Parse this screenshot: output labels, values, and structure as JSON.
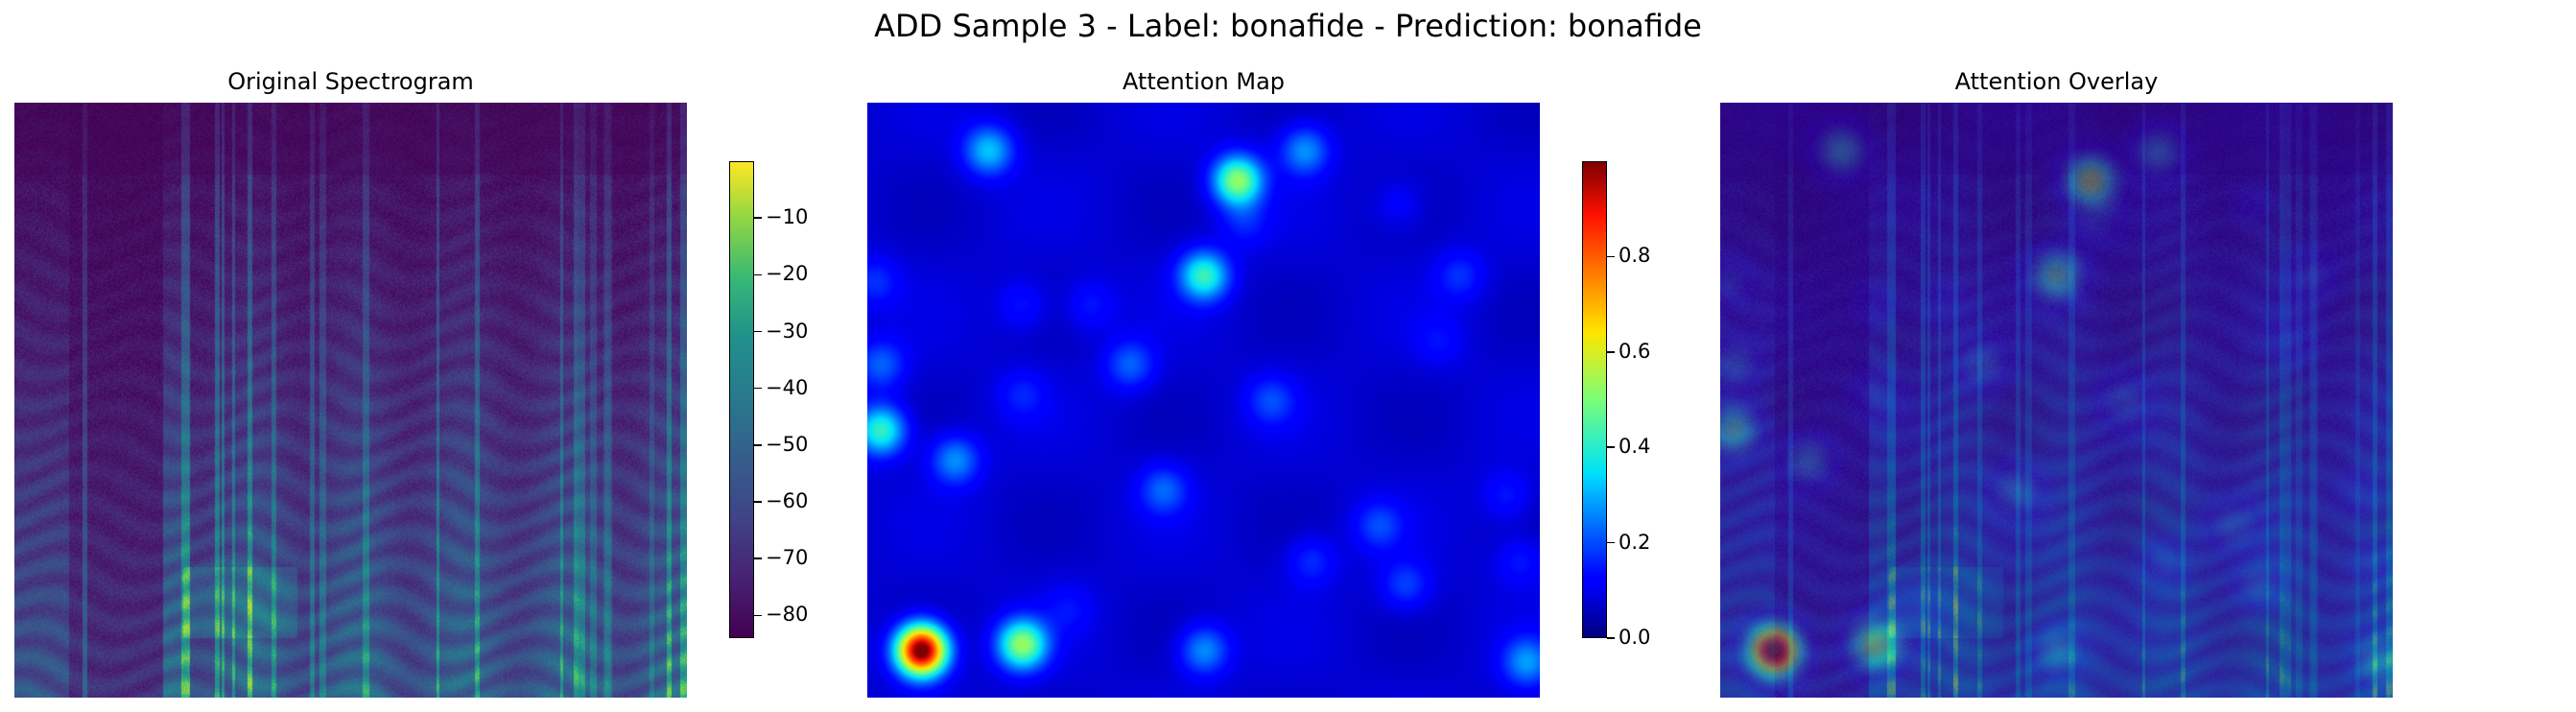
{
  "chart_data": {
    "suptitle": "ADD Sample 3 - Label: bonafide - Prediction: bonafide",
    "panels": [
      {
        "type": "heatmap",
        "title": "Original Spectrogram",
        "colormap": "viridis",
        "axes": "off",
        "colorbar": {
          "ticks": [
            -10,
            -20,
            -30,
            -40,
            -50,
            -60,
            -70,
            -80
          ],
          "range": [
            -84,
            0
          ]
        }
      },
      {
        "type": "heatmap",
        "title": "Attention Map",
        "colormap": "jet",
        "axes": "off",
        "colorbar": {
          "ticks": [
            0.0,
            0.2,
            0.4,
            0.6,
            0.8
          ],
          "range": [
            0.0,
            1.0
          ]
        },
        "peaks": [
          {
            "x": 0.08,
            "y": 0.92,
            "v": 1.0
          },
          {
            "x": 0.23,
            "y": 0.91,
            "v": 0.45
          },
          {
            "x": 0.55,
            "y": 0.13,
            "v": 0.45
          },
          {
            "x": 0.5,
            "y": 0.29,
            "v": 0.35
          },
          {
            "x": 0.02,
            "y": 0.55,
            "v": 0.35
          },
          {
            "x": 0.18,
            "y": 0.08,
            "v": 0.25
          },
          {
            "x": 0.13,
            "y": 0.6,
            "v": 0.2
          },
          {
            "x": 0.65,
            "y": 0.08,
            "v": 0.2
          },
          {
            "x": 0.5,
            "y": 0.92,
            "v": 0.2
          },
          {
            "x": 0.98,
            "y": 0.94,
            "v": 0.2
          },
          {
            "x": 0.39,
            "y": 0.44,
            "v": 0.15
          },
          {
            "x": 0.02,
            "y": 0.44,
            "v": 0.15
          },
          {
            "x": 0.44,
            "y": 0.65,
            "v": 0.15
          },
          {
            "x": 0.6,
            "y": 0.5,
            "v": 0.12
          },
          {
            "x": 0.76,
            "y": 0.71,
            "v": 0.12
          },
          {
            "x": 0.8,
            "y": 0.81,
            "v": 0.12
          },
          {
            "x": 0.66,
            "y": 0.77,
            "v": 0.1
          },
          {
            "x": 0.88,
            "y": 0.29,
            "v": 0.1
          },
          {
            "x": 0.95,
            "y": 0.66,
            "v": 0.08
          },
          {
            "x": 0.97,
            "y": 0.77,
            "v": 0.08
          },
          {
            "x": 0.01,
            "y": 0.3,
            "v": 0.1
          },
          {
            "x": 0.23,
            "y": 0.49,
            "v": 0.08
          },
          {
            "x": 0.23,
            "y": 0.34,
            "v": 0.08
          },
          {
            "x": 0.33,
            "y": 0.34,
            "v": 0.08
          },
          {
            "x": 0.56,
            "y": 0.2,
            "v": 0.08
          },
          {
            "x": 0.79,
            "y": 0.17,
            "v": 0.06
          },
          {
            "x": 0.85,
            "y": 0.4,
            "v": 0.06
          },
          {
            "x": 0.3,
            "y": 0.85,
            "v": 0.06
          }
        ]
      },
      {
        "type": "heatmap",
        "title": "Attention Overlay",
        "colormap": "viridis + jet overlay",
        "axes": "off"
      }
    ]
  }
}
